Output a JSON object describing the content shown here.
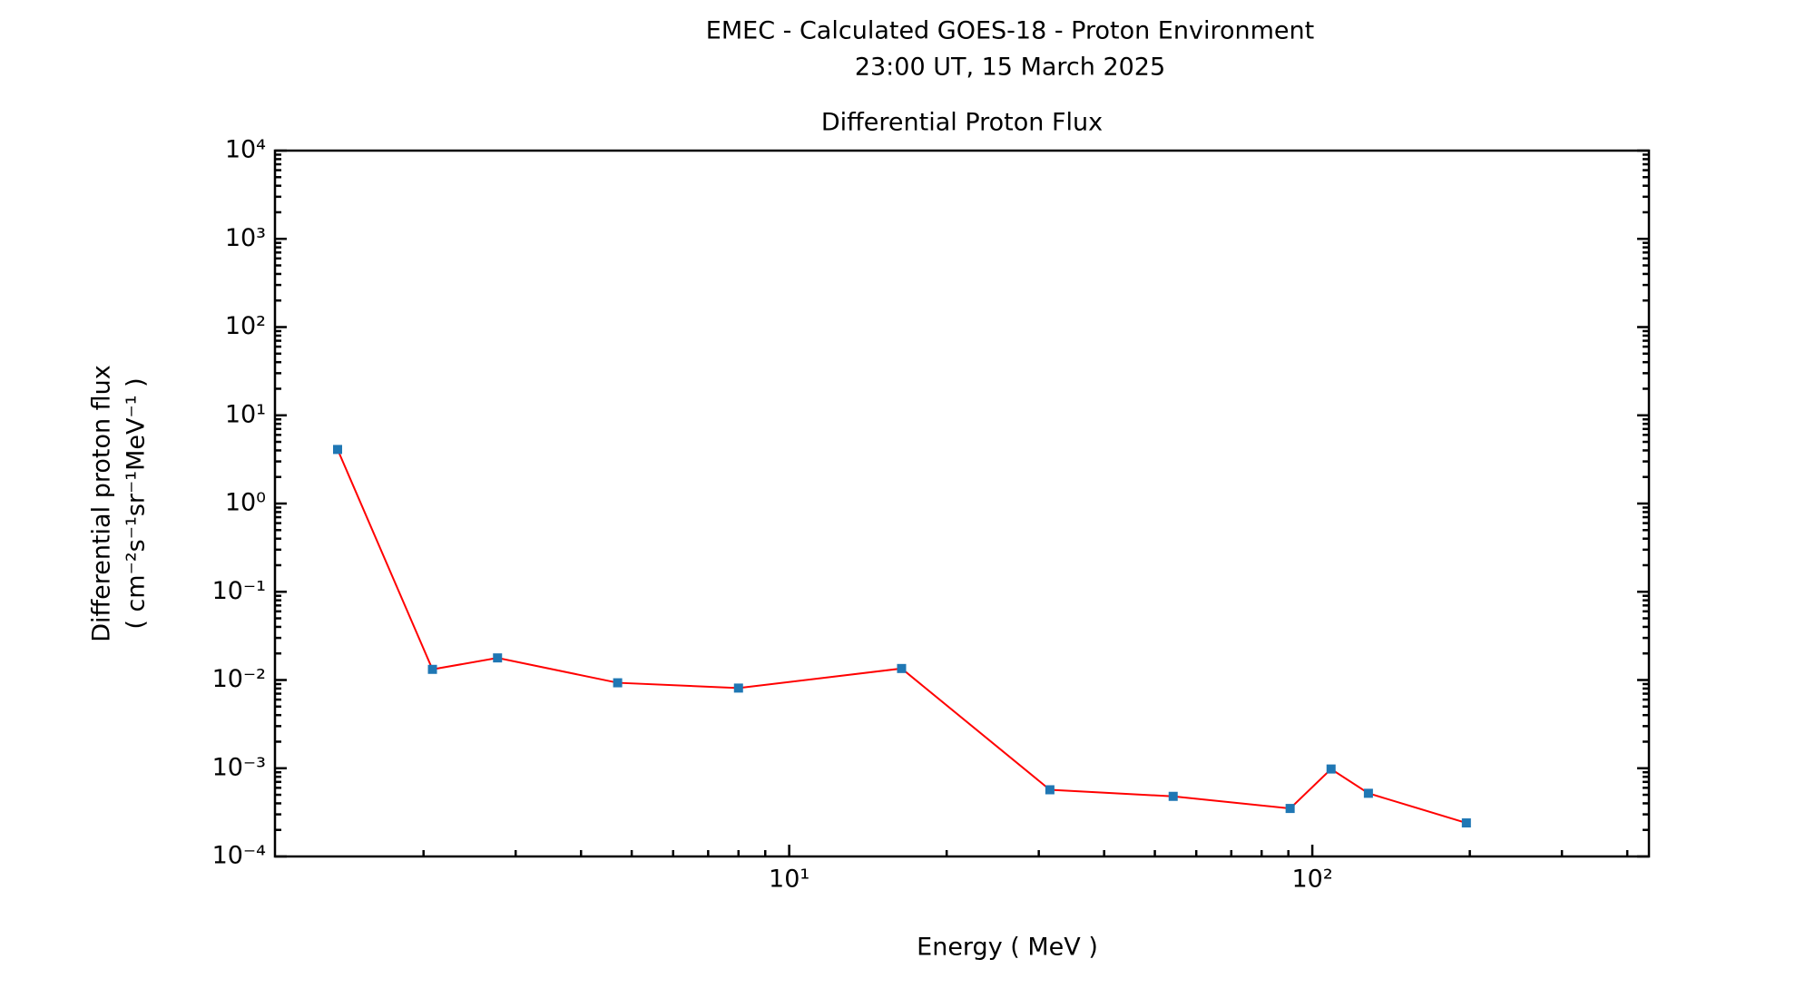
{
  "chart_data": {
    "type": "line",
    "title": "EMEC - Calculated GOES-18 - Proton Environment",
    "subtitle": "23:00 UT, 15 March 2025",
    "plot_title": "Differential Proton Flux",
    "xlabel": "Energy ( MeV )",
    "ylabel": [
      "Differential proton flux",
      "( cm⁻²s⁻¹sr⁻¹MeV⁻¹ )"
    ],
    "x": [
      1.37,
      2.08,
      2.77,
      4.7,
      8.0,
      16.4,
      31.5,
      54.2,
      90.7,
      108.6,
      128,
      197
    ],
    "series": [
      {
        "name": "Flux",
        "color": "#ff0000",
        "marker_color": "#1f77b4",
        "values": [
          4.1,
          0.0132,
          0.0178,
          0.0093,
          0.0081,
          0.0135,
          0.00057,
          0.00048,
          0.00035,
          0.00098,
          0.00052,
          0.00024
        ]
      }
    ],
    "xlog": true,
    "ylog": true,
    "minor_ticks": true,
    "xlim": [
      1.04,
      440
    ],
    "ylim": [
      0.0001,
      10000
    ],
    "xticks": [
      {
        "value": 10,
        "label": "10¹"
      },
      {
        "value": 100,
        "label": "10²"
      }
    ],
    "yticks": [
      {
        "value": 0.0001,
        "label": "10⁻⁴"
      },
      {
        "value": 0.001,
        "label": "10⁻³"
      },
      {
        "value": 0.01,
        "label": "10⁻²"
      },
      {
        "value": 0.1,
        "label": "10⁻¹"
      },
      {
        "value": 1,
        "label": "10⁰"
      },
      {
        "value": 10,
        "label": "10¹"
      },
      {
        "value": 100,
        "label": "10²"
      },
      {
        "value": 1000,
        "label": "10³"
      },
      {
        "value": 10000,
        "label": "10⁴"
      }
    ]
  }
}
